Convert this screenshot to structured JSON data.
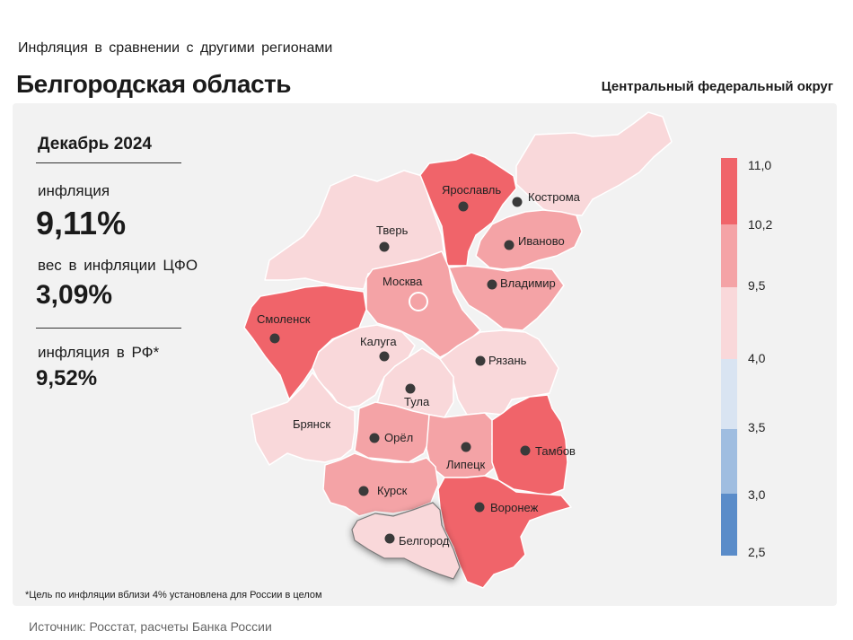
{
  "header": {
    "subtitle": "Инфляция  в сравнении  с другими  регионами",
    "title": "Белгородская область",
    "district": "Центральный федеральный округ"
  },
  "stats": {
    "period": "Декабрь 2024",
    "inflation_label": "инфляция",
    "inflation_value": "9,11%",
    "weight_label": "вес в инфляции  ЦФО",
    "weight_value": "3,09%",
    "rf_label": "инфляция  в РФ*",
    "rf_value": "9,52%"
  },
  "legend": {
    "ticks": [
      "11,0",
      "10,2",
      "9,5",
      "4,0",
      "3,5",
      "3,0",
      "2,5"
    ],
    "colors": {
      "high": "#f0646a",
      "mid_high": "#f4a3a6",
      "mid": "#f9d8da",
      "low1": "#d9e4f2",
      "low2": "#9fbde0",
      "low3": "#5a8cc9"
    }
  },
  "regions": {
    "tver": "Тверь",
    "yaroslavl": "Ярославль",
    "kostroma": "Кострома",
    "ivanovo": "Иваново",
    "moskva": "Москва",
    "vladimir": "Владимир",
    "smolensk": "Смоленск",
    "kaluga": "Калуга",
    "ryazan": "Рязань",
    "tula": "Тула",
    "bryansk": "Брянск",
    "orel": "Орёл",
    "lipetsk": "Липецк",
    "tambov": "Тамбов",
    "kursk": "Курск",
    "voronezh": "Воронеж",
    "belgorod": "Белгород"
  },
  "footnote": "*Цель по инфляции вблизи 4% установлена для России в целом",
  "source": "Источник: Росстат, расчеты Банка России"
}
